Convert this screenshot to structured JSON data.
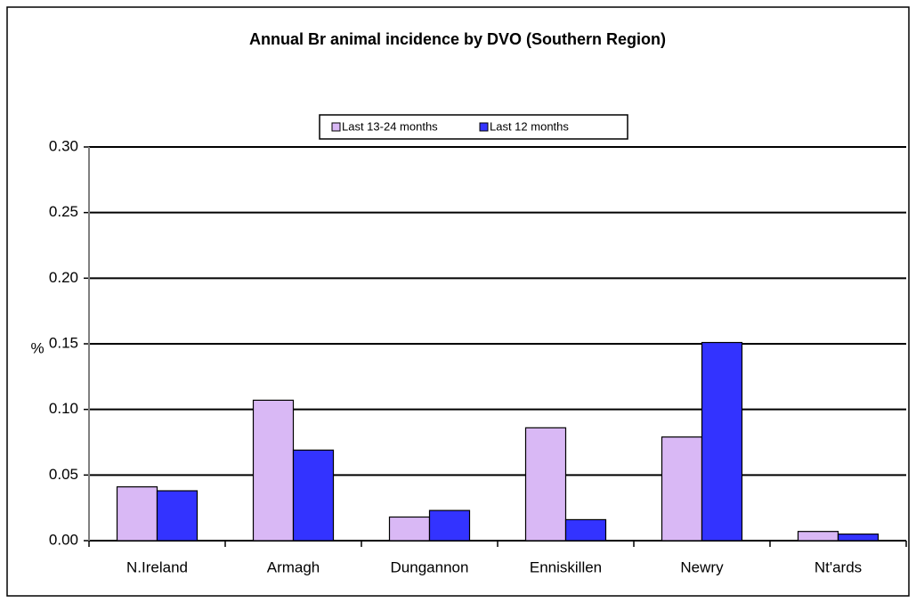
{
  "chart_data": {
    "type": "bar",
    "title": "Annual Br animal incidence by DVO (Southern Region)",
    "y_label": "%",
    "categories": [
      "N.Ireland",
      "Armagh",
      "Dungannon",
      "Enniskillen",
      "Newry",
      "Nt'ards"
    ],
    "series": [
      {
        "name": "Last 13-24 months",
        "color": "#d9b8f5",
        "values": [
          0.041,
          0.107,
          0.018,
          0.086,
          0.079,
          0.007
        ]
      },
      {
        "name": "Last 12 months",
        "color": "#3333ff",
        "values": [
          0.038,
          0.069,
          0.023,
          0.016,
          0.151,
          0.005
        ]
      }
    ],
    "ylim": [
      0,
      0.3
    ],
    "yticks": [
      {
        "value": 0,
        "label": "0.00"
      },
      {
        "value": 0.05,
        "label": "0.05"
      },
      {
        "value": 0.1,
        "label": "0.10"
      },
      {
        "value": 0.15,
        "label": "0.15"
      },
      {
        "value": 0.2,
        "label": "0.20"
      },
      {
        "value": 0.25,
        "label": "0.25"
      },
      {
        "value": 0.3,
        "label": "0.30"
      }
    ],
    "grid": true,
    "legend": "top"
  }
}
